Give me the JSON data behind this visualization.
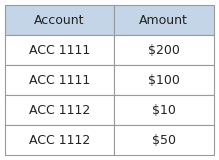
{
  "columns": [
    "Account",
    "Amount"
  ],
  "rows": [
    [
      "ACC 1111",
      "$200"
    ],
    [
      "ACC 1111",
      "$100"
    ],
    [
      "ACC 1112",
      "$10"
    ],
    [
      "ACC 1112",
      "$50"
    ]
  ],
  "header_bg": "#c5d5e8",
  "row_bg": "#ffffff",
  "border_color": "#999999",
  "header_font_size": 9,
  "row_font_size": 9,
  "text_color": "#222222",
  "fig_bg": "#ffffff",
  "col_split": 0.52
}
